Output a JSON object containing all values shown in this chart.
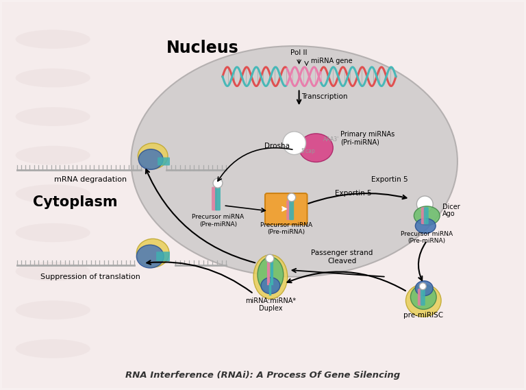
{
  "title": "RNA Interference (RNAi): A Process Of Gene Silencing",
  "bg_color": "#f7f0f0",
  "nucleus_label": "Nucleus",
  "cytoplasm_label": "Cytoplasm",
  "labels": {
    "pol_ii": "Pol II",
    "mirna_gene": "miRNA gene",
    "transcription": "Transcription",
    "drosha": "Drosha",
    "primary_mirna": "Primary miRNAs\n(Pri-miRNA)",
    "exportin5": "Exportin 5",
    "precursor_mirna_nucleus": "Precursor miRNA\n(Pre-miRNA)",
    "precursor_mirna_cytoplasm": "Precursor miRNA\n(Pre-miRNA)",
    "dicer": "Dicer",
    "ago": "Ago",
    "precursor_mirna_dicer": "Precursor miRNA\n(Pre-miRNA)",
    "pre_mirisc": "pre-miRISC",
    "passenger_strand": "Passenger strand\nCleaved",
    "duplex": "miRNA:miRNA*\nDuplex",
    "mrna_degradation": "mRNA degradation",
    "suppression": "Suppression of translation"
  }
}
